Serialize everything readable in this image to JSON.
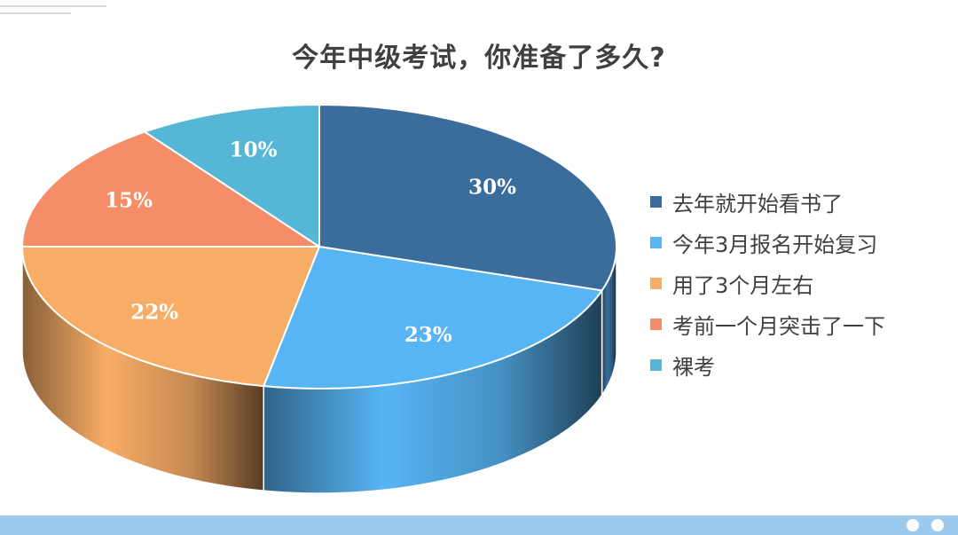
{
  "chart_data": {
    "type": "pie",
    "title": "今年中级考试，你准备了多久?",
    "categories": [
      "去年就开始看书了",
      "今年3月报名开始复习",
      "用了3个月左右",
      "考前一个月突击了一下",
      "裸考"
    ],
    "values": [
      30,
      23,
      22,
      15,
      10
    ],
    "value_labels": [
      "30%",
      "23%",
      "22%",
      "15%",
      "10%"
    ],
    "colors": [
      "#3a6c9c",
      "#57b5f5",
      "#f8ad66",
      "#f58d68",
      "#55b6d6"
    ],
    "legend_position": "right",
    "style": "3d"
  },
  "footer": {
    "bar_color": "#9cc9ee"
  }
}
